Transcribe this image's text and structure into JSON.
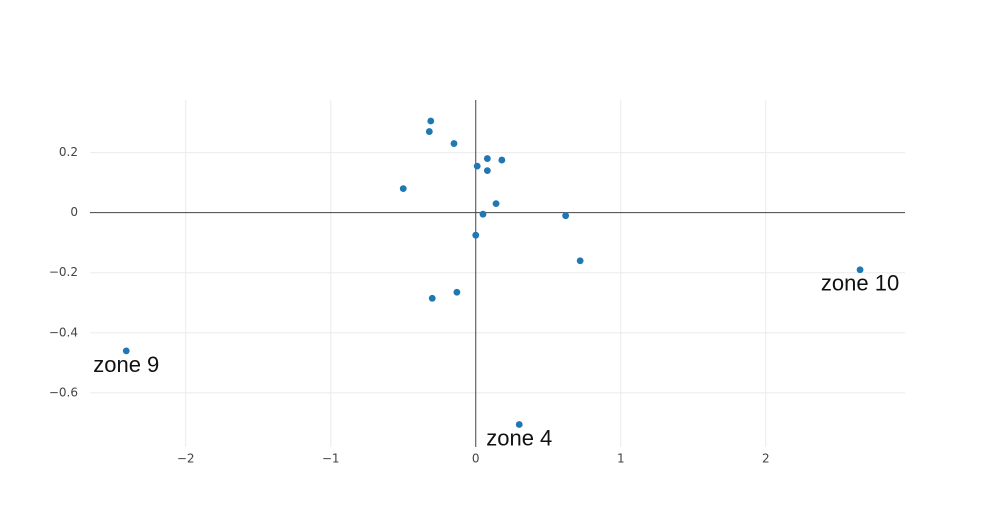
{
  "chart_data": {
    "type": "scatter",
    "title": "",
    "xlabel": "",
    "ylabel": "",
    "xlim": [
      -2.66,
      2.96
    ],
    "ylim": [
      -0.78,
      0.375
    ],
    "grid": true,
    "marker_color": "#1f77b4",
    "xticks": [
      -2,
      -1,
      0,
      1,
      2
    ],
    "xtick_labels": [
      "−2",
      "−1",
      "0",
      "1",
      "2"
    ],
    "yticks": [
      0.2,
      0,
      -0.2,
      -0.4,
      -0.6
    ],
    "ytick_labels": [
      "0.2",
      "0",
      "−0.2",
      "−0.4",
      "−0.6"
    ],
    "points": [
      {
        "x": -0.31,
        "y": 0.305,
        "label": ""
      },
      {
        "x": -0.32,
        "y": 0.27,
        "label": ""
      },
      {
        "x": -0.15,
        "y": 0.23,
        "label": ""
      },
      {
        "x": 0.08,
        "y": 0.18,
        "label": ""
      },
      {
        "x": 0.18,
        "y": 0.175,
        "label": ""
      },
      {
        "x": 0.01,
        "y": 0.155,
        "label": ""
      },
      {
        "x": 0.08,
        "y": 0.14,
        "label": ""
      },
      {
        "x": -0.5,
        "y": 0.08,
        "label": ""
      },
      {
        "x": 0.14,
        "y": 0.03,
        "label": ""
      },
      {
        "x": 0.05,
        "y": -0.005,
        "label": ""
      },
      {
        "x": 0.62,
        "y": -0.01,
        "label": ""
      },
      {
        "x": 0.0,
        "y": -0.075,
        "label": ""
      },
      {
        "x": 0.72,
        "y": -0.16,
        "label": ""
      },
      {
        "x": 2.65,
        "y": -0.19,
        "label": "zone 10"
      },
      {
        "x": -0.13,
        "y": -0.265,
        "label": ""
      },
      {
        "x": -0.3,
        "y": -0.285,
        "label": ""
      },
      {
        "x": -2.41,
        "y": -0.46,
        "label": "zone 9"
      },
      {
        "x": 0.3,
        "y": -0.705,
        "label": "zone 4"
      }
    ]
  }
}
